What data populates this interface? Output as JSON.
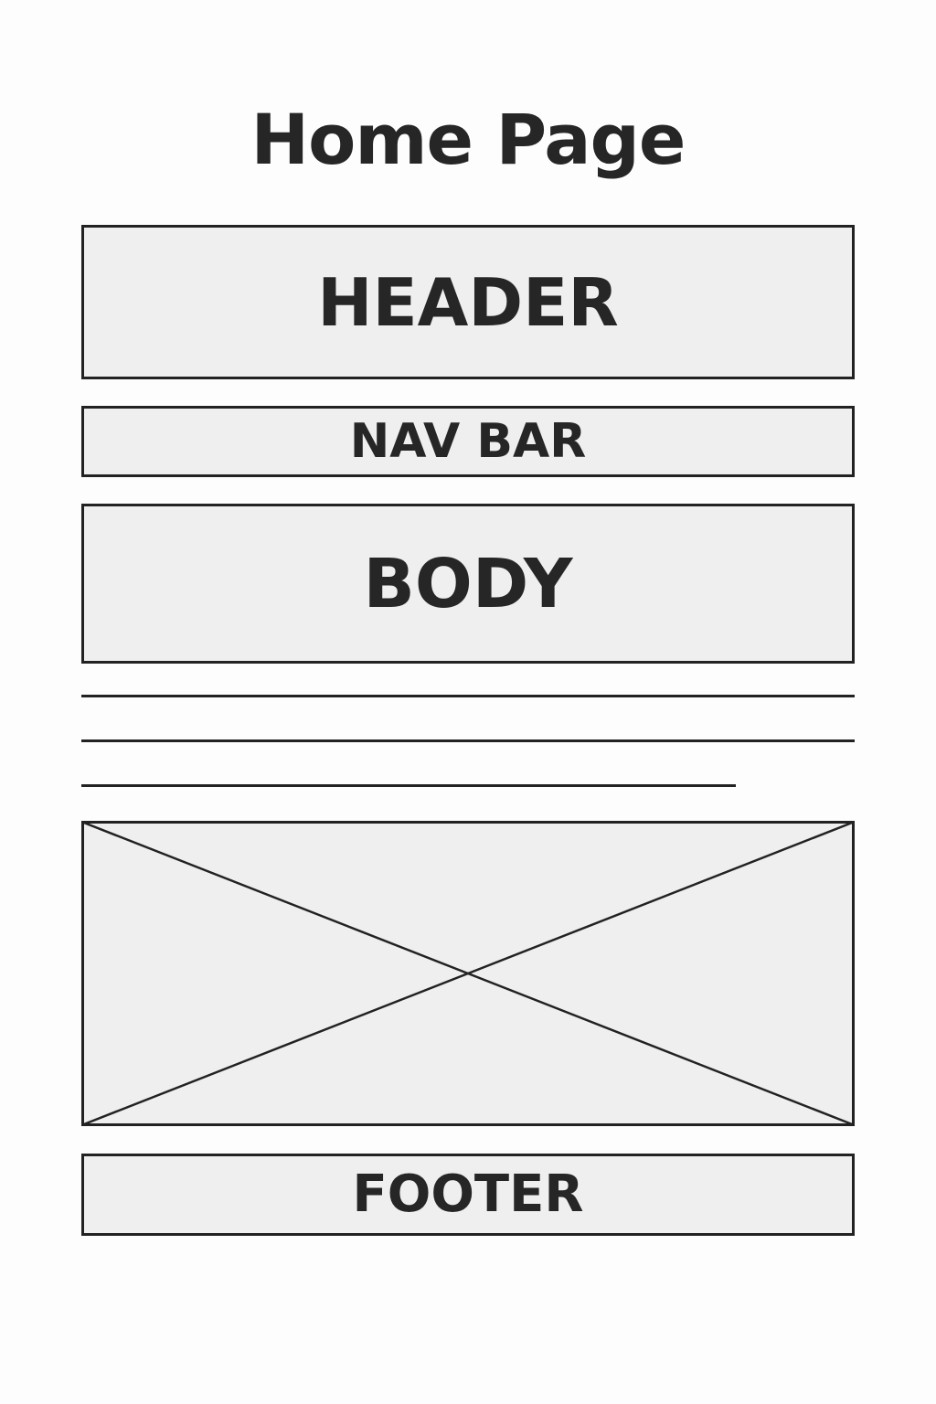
{
  "page": {
    "title": "Home Page"
  },
  "sections": {
    "header": "HEADER",
    "nav_bar": "NAV BAR",
    "body": "BODY",
    "footer": "FOOTER"
  },
  "colors": {
    "box_fill": "#efefef",
    "stroke": "#222222",
    "text": "#262626",
    "background": "#fdfdfd"
  }
}
